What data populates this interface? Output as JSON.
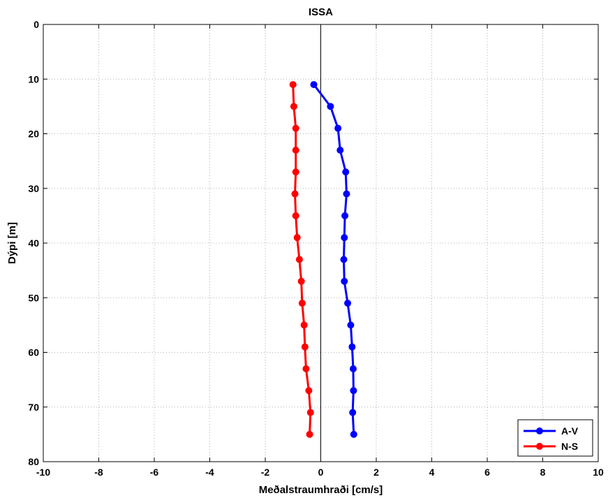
{
  "chart_data": {
    "type": "line",
    "title": "ISSA",
    "xlabel": "Meðalstraumhraði [cm/s]",
    "ylabel": "Dýpi [m]",
    "xlim": [
      -10,
      10
    ],
    "ylim": [
      0,
      80
    ],
    "y_reversed": true,
    "grid": true,
    "legend_position": "bottom-right",
    "x_ticks": [
      "-10",
      "-8",
      "-6",
      "-4",
      "-2",
      "0",
      "2",
      "4",
      "6",
      "8",
      "10"
    ],
    "y_ticks": [
      "0",
      "10",
      "20",
      "30",
      "40",
      "50",
      "60",
      "70",
      "80"
    ],
    "depths": [
      11,
      15,
      19,
      23,
      27,
      31,
      35,
      39,
      43,
      47,
      51,
      55,
      59,
      63,
      67,
      71,
      75
    ],
    "series": [
      {
        "name": "A-V",
        "color": "#0000ff",
        "values": [
          -0.25,
          0.35,
          0.62,
          0.7,
          0.9,
          0.93,
          0.87,
          0.85,
          0.83,
          0.85,
          0.97,
          1.08,
          1.13,
          1.17,
          1.18,
          1.15,
          1.19
        ]
      },
      {
        "name": "N-S",
        "color": "#ff0000",
        "values": [
          -1.0,
          -0.97,
          -0.9,
          -0.9,
          -0.9,
          -0.93,
          -0.9,
          -0.85,
          -0.77,
          -0.7,
          -0.67,
          -0.6,
          -0.57,
          -0.53,
          -0.43,
          -0.37,
          -0.4
        ]
      }
    ]
  }
}
